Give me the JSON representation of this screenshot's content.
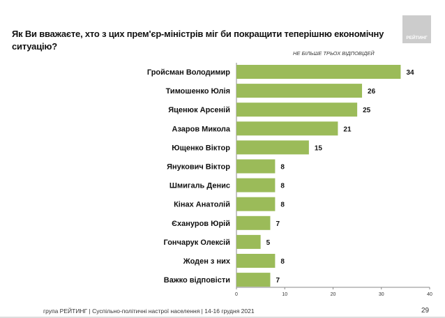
{
  "question": "Як Ви вважаєте, хто з цих прем'єр-міністрів міг би покращити теперішню економічну ситуацію?",
  "note": "НЕ БІЛЬШЕ ТРЬОХ ВІДПОВІДЕЙ",
  "logo_text": "РЕЙТИНГ",
  "footer": "група РЕЙТИНГ | Суспільно-політичні настрої населення |  14-16 грудня 2021",
  "page_number": "29",
  "chart_data": {
    "type": "bar",
    "orientation": "horizontal",
    "categories": [
      "Гройсман Володимир",
      "Тимошенко Юлія",
      "Яценюк Арсеній",
      "Азаров Микола",
      "Ющенко Віктор",
      "Янукович Віктор",
      "Шмигаль Денис",
      "Кінах Анатолій",
      "Єхануров Юрій",
      "Гончарук Олексій",
      "Жоден з них",
      "Важко відповісти"
    ],
    "values": [
      34,
      26,
      25,
      21,
      15,
      8,
      8,
      8,
      7,
      5,
      8,
      7
    ],
    "xlim": [
      0,
      40
    ],
    "xticks": [
      "0",
      "10",
      "20",
      "30",
      "40"
    ],
    "bar_color": "#9bbb59",
    "grid": false
  }
}
